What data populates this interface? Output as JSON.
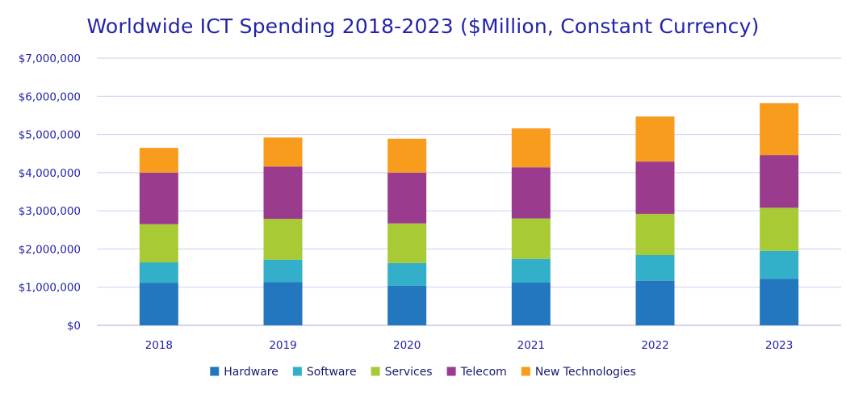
{
  "chart_data": {
    "type": "bar",
    "stacked": true,
    "title": "Worldwide ICT Spending 2018-2023 ($Million, Constant Currency)",
    "xlabel": "",
    "ylabel": "",
    "categories": [
      "2018",
      "2019",
      "2020",
      "2021",
      "2022",
      "2023"
    ],
    "ylim": [
      0,
      7000000
    ],
    "yticks": [
      0,
      1000000,
      2000000,
      3000000,
      4000000,
      5000000,
      6000000,
      7000000
    ],
    "ytick_labels": [
      "$0",
      "$1,000,000",
      "$2,000,000",
      "$3,000,000",
      "$4,000,000",
      "$5,000,000",
      "$6,000,000",
      "$7,000,000"
    ],
    "grid": true,
    "legend_position": "bottom",
    "series": [
      {
        "name": "Hardware",
        "color": "#2277be",
        "values": [
          1110000,
          1130000,
          1040000,
          1120000,
          1170000,
          1220000
        ]
      },
      {
        "name": "Software",
        "color": "#33afc9",
        "values": [
          540000,
          590000,
          590000,
          620000,
          670000,
          730000
        ]
      },
      {
        "name": "Services",
        "color": "#a8cb35",
        "values": [
          1000000,
          1070000,
          1040000,
          1060000,
          1080000,
          1130000
        ]
      },
      {
        "name": "Telecom",
        "color": "#9b3b8e",
        "values": [
          1350000,
          1370000,
          1330000,
          1340000,
          1370000,
          1380000
        ]
      },
      {
        "name": "New Technologies",
        "color": "#f89c1e",
        "values": [
          650000,
          760000,
          890000,
          1020000,
          1180000,
          1360000
        ]
      }
    ]
  }
}
